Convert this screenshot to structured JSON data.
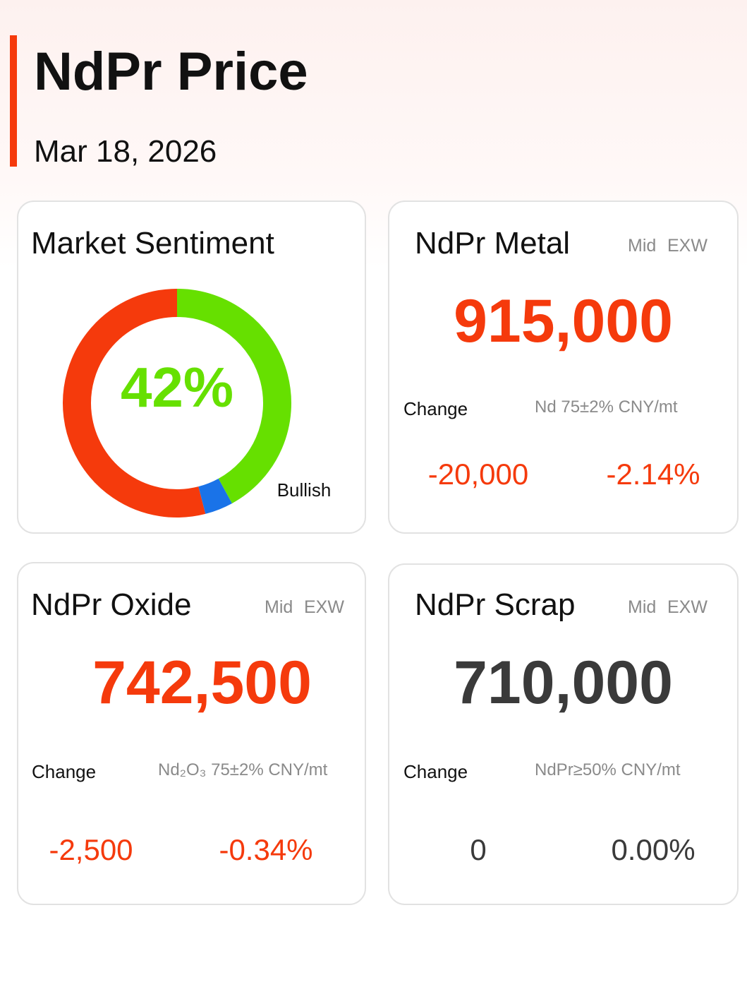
{
  "header": {
    "title": "NdPr Price",
    "date": "Mar 18, 2026"
  },
  "sentiment": {
    "title": "Market Sentiment",
    "percent_label": "42%",
    "label": "Bullish",
    "segments": [
      {
        "value": 42,
        "color": "#66e000"
      },
      {
        "value": 4,
        "color": "#1a73e8"
      },
      {
        "value": 54,
        "color": "#f53a0c"
      }
    ]
  },
  "cards": [
    {
      "title": "NdPr Metal",
      "tags": [
        "Mid",
        "EXW"
      ],
      "price": "915,000",
      "change_label": "Change",
      "spec": "Nd 75±2% CNY/mt",
      "change": "-20,000",
      "change_pct": "-2.14%",
      "color": "#f53a0c"
    },
    {
      "title": "NdPr Oxide",
      "tags": [
        "Mid",
        "EXW"
      ],
      "price": "742,500",
      "change_label": "Change",
      "spec": "Nd₂O₃ 75±2% CNY/mt",
      "change": "-2,500",
      "change_pct": "-0.34%",
      "color": "#f53a0c"
    },
    {
      "title": "NdPr Scrap",
      "tags": [
        "Mid",
        "EXW"
      ],
      "price": "710,000",
      "change_label": "Change",
      "spec": "NdPr≥50% CNY/mt",
      "change": "0",
      "change_pct": "0.00%",
      "color": "#3a3a3a"
    }
  ]
}
